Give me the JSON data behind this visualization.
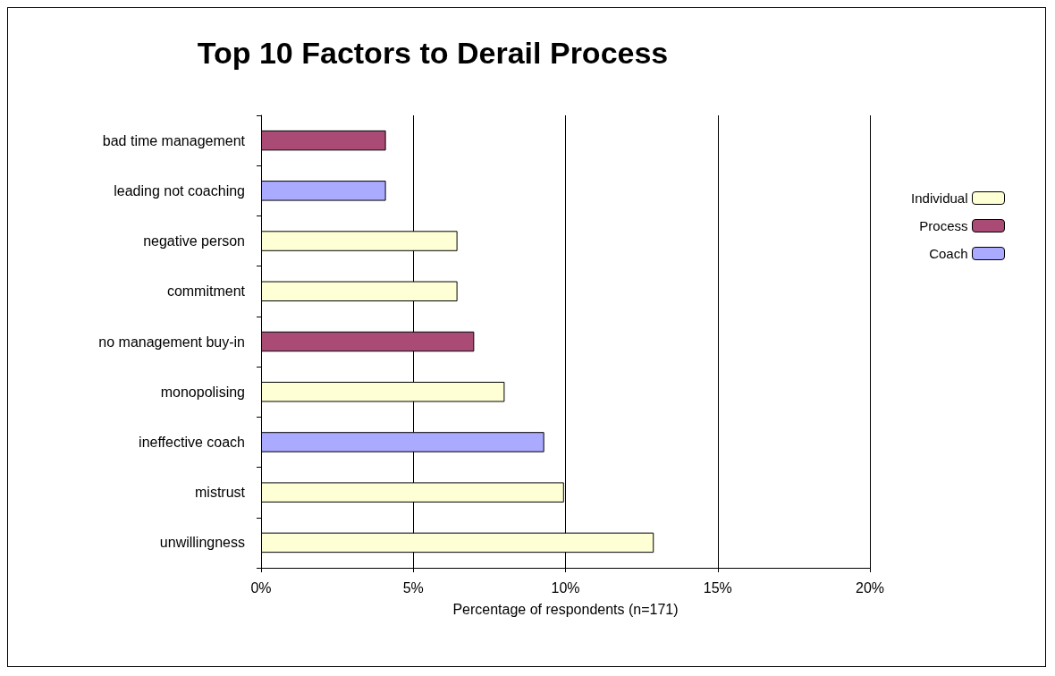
{
  "chart_data": {
    "type": "bar",
    "orientation": "horizontal",
    "stacked": true,
    "title": "Top 10 Factors to Derail Process",
    "xlabel": "Percentage of respondents (n=171)",
    "categories": [
      "bad time management",
      "leading not coaching",
      "negative person",
      "commitment",
      "no management buy-in",
      "monopolising",
      "ineffective coach",
      "mistrust",
      "unwillingness"
    ],
    "series": [
      {
        "name": "Individual",
        "color": "#ffffd5",
        "values": [
          null,
          null,
          6.45,
          6.45,
          null,
          8.0,
          null,
          9.95,
          12.9
        ]
      },
      {
        "name": "Process",
        "color": "#aa4b76",
        "values": [
          4.1,
          null,
          null,
          null,
          7.0,
          null,
          null,
          null,
          null
        ]
      },
      {
        "name": "Coach",
        "color": "#aaaaff",
        "values": [
          null,
          4.1,
          null,
          null,
          null,
          null,
          9.3,
          null,
          null
        ]
      }
    ],
    "xlim": [
      0,
      20
    ],
    "xticks": [
      {
        "value": 0,
        "label": "0%"
      },
      {
        "value": 5,
        "label": "5%"
      },
      {
        "value": 10,
        "label": "10%"
      },
      {
        "value": 15,
        "label": "15%"
      },
      {
        "value": 20,
        "label": "20%"
      }
    ],
    "grid": "x",
    "legend": "right"
  }
}
